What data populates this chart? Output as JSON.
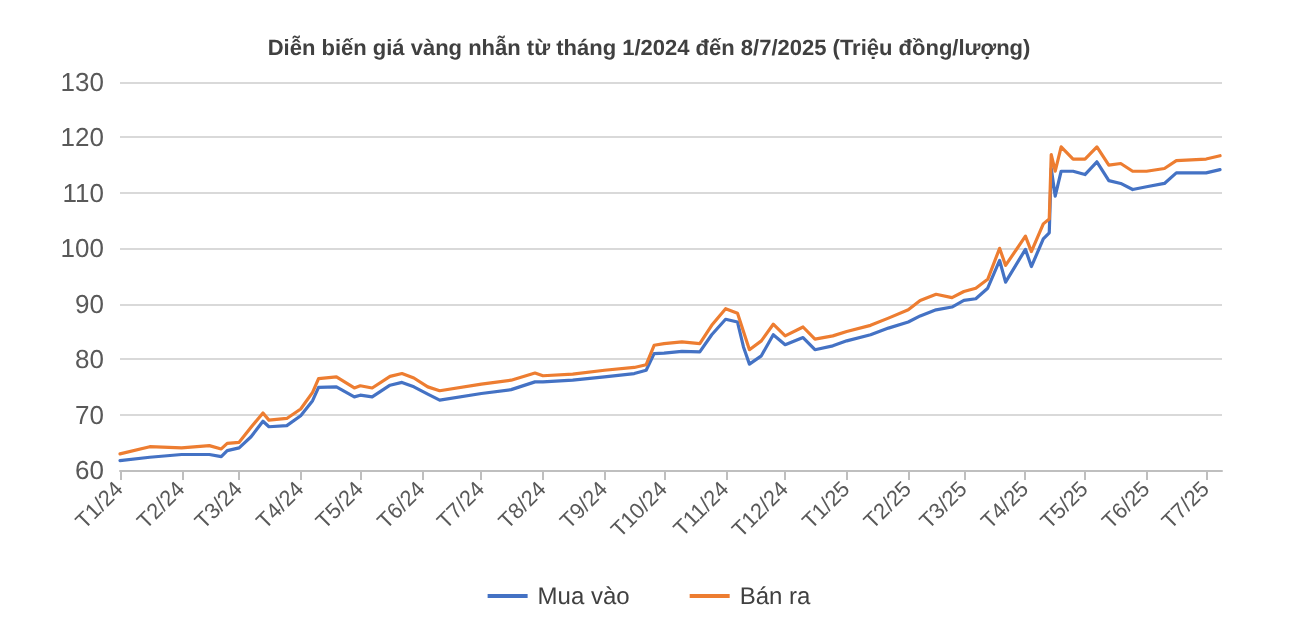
{
  "chart_data": {
    "type": "line",
    "title": "Diễn biến giá vàng nhẫn từ tháng 1/2024 đến 8/7/2025 (Triệu đồng/lượng)",
    "x": [
      "2024-01-01",
      "2024-01-16",
      "2024-02-01",
      "2024-02-15",
      "2024-02-21",
      "2024-02-24",
      "2024-03-01",
      "2024-03-07",
      "2024-03-13",
      "2024-03-16",
      "2024-03-25",
      "2024-04-01",
      "2024-04-07",
      "2024-04-10",
      "2024-04-19",
      "2024-04-28",
      "2024-05-01",
      "2024-05-07",
      "2024-05-16",
      "2024-05-22",
      "2024-05-28",
      "2024-06-04",
      "2024-06-10",
      "2024-07-01",
      "2024-07-16",
      "2024-07-28",
      "2024-08-01",
      "2024-08-16",
      "2024-09-01",
      "2024-09-16",
      "2024-09-22",
      "2024-09-26",
      "2024-10-01",
      "2024-10-10",
      "2024-10-19",
      "2024-10-25",
      "2024-11-01",
      "2024-11-07",
      "2024-11-10",
      "2024-11-13",
      "2024-11-19",
      "2024-11-25",
      "2024-12-01",
      "2024-12-10",
      "2024-12-16",
      "2024-12-25",
      "2025-01-01",
      "2025-01-13",
      "2025-01-22",
      "2025-02-01",
      "2025-02-07",
      "2025-02-15",
      "2025-02-23",
      "2025-03-01",
      "2025-03-07",
      "2025-03-13",
      "2025-03-19",
      "2025-03-22",
      "2025-04-01",
      "2025-04-04",
      "2025-04-10",
      "2025-04-13",
      "2025-04-14",
      "2025-04-16",
      "2025-04-19",
      "2025-04-25",
      "2025-05-01",
      "2025-05-07",
      "2025-05-13",
      "2025-05-19",
      "2025-05-25",
      "2025-06-01",
      "2025-06-10",
      "2025-06-16",
      "2025-07-01",
      "2025-07-08"
    ],
    "series": [
      {
        "name": "Mua vào",
        "color": "#4472c4",
        "values": [
          61.7,
          62.3,
          62.8,
          62.8,
          62.4,
          63.5,
          64,
          66,
          68.8,
          67.8,
          68,
          69.8,
          72.5,
          74.9,
          75,
          73.2,
          73.5,
          73.2,
          75.3,
          75.8,
          75,
          73.7,
          72.6,
          73.8,
          74.5,
          75.9,
          75.9,
          76.2,
          76.8,
          77.4,
          78,
          81,
          81.1,
          81.4,
          81.3,
          84.4,
          87.2,
          86.7,
          82.2,
          79.1,
          80.6,
          84.4,
          82.6,
          83.9,
          81.7,
          82.4,
          83.3,
          84.4,
          85.6,
          86.7,
          87.8,
          88.9,
          89.4,
          90.6,
          90.9,
          92.8,
          97.8,
          93.9,
          99.8,
          96.7,
          101.7,
          102.8,
          114.4,
          109.4,
          113.9,
          113.9,
          113.3,
          115.6,
          112.2,
          111.7,
          110.6,
          111.1,
          111.7,
          113.6,
          113.6,
          114.2
        ]
      },
      {
        "name": "Bán ra",
        "color": "#ed7d31",
        "values": [
          62.9,
          64.2,
          64,
          64.4,
          63.8,
          64.8,
          65,
          67.7,
          70.3,
          69,
          69.3,
          71,
          74,
          76.5,
          76.8,
          74.8,
          75.2,
          74.8,
          76.9,
          77.4,
          76.6,
          75,
          74.3,
          75.5,
          76.2,
          77.5,
          77,
          77.3,
          78,
          78.5,
          79,
          82.5,
          82.8,
          83.1,
          82.8,
          86.1,
          89.1,
          88.3,
          85,
          81.7,
          83.3,
          86.3,
          84.2,
          85.8,
          83.6,
          84.2,
          85,
          86.1,
          87.4,
          88.9,
          90.6,
          91.7,
          91.1,
          92.2,
          92.8,
          94.4,
          100,
          96.9,
          102.2,
          99.4,
          104.4,
          105.3,
          116.9,
          113.9,
          118.3,
          116.1,
          116.1,
          118.3,
          115,
          115.3,
          113.9,
          113.9,
          114.4,
          115.8,
          116.1,
          116.7
        ]
      }
    ],
    "xlim": [
      "2024-01-01",
      "2025-07-09"
    ],
    "xticks": [
      {
        "value": "2024-01-01",
        "label": "T1/24"
      },
      {
        "value": "2024-02-01",
        "label": "T2/24"
      },
      {
        "value": "2024-03-01",
        "label": "T3/24"
      },
      {
        "value": "2024-04-01",
        "label": "T4/24"
      },
      {
        "value": "2024-05-01",
        "label": "T5/24"
      },
      {
        "value": "2024-06-01",
        "label": "T6/24"
      },
      {
        "value": "2024-07-01",
        "label": "T7/24"
      },
      {
        "value": "2024-08-01",
        "label": "T8/24"
      },
      {
        "value": "2024-09-01",
        "label": "T9/24"
      },
      {
        "value": "2024-10-01",
        "label": "T10/24"
      },
      {
        "value": "2024-11-01",
        "label": "T11/24"
      },
      {
        "value": "2024-12-01",
        "label": "T12/24"
      },
      {
        "value": "2025-01-01",
        "label": "T1/25"
      },
      {
        "value": "2025-02-01",
        "label": "T2/25"
      },
      {
        "value": "2025-03-01",
        "label": "T3/25"
      },
      {
        "value": "2025-04-01",
        "label": "T4/25"
      },
      {
        "value": "2025-05-01",
        "label": "T5/25"
      },
      {
        "value": "2025-06-01",
        "label": "T6/25"
      },
      {
        "value": "2025-07-01",
        "label": "T7/25"
      }
    ],
    "ylim": [
      60,
      130
    ],
    "yticks": [
      60,
      70,
      80,
      90,
      100,
      110,
      120,
      130
    ],
    "grid": "y",
    "legend": "bottom",
    "marker": "none",
    "line_style": "solid"
  }
}
